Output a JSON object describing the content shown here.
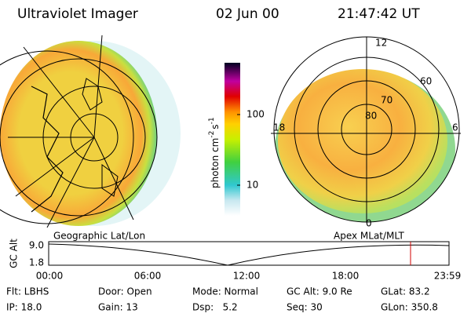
{
  "header": {
    "instrument": "Ultraviolet Imager",
    "date": "02 Jun 00",
    "time": "21:47:42 UT"
  },
  "colorbar": {
    "label": "photon cm",
    "exp1": "-2",
    "unit2": "s",
    "exp2": "-1",
    "ticks": [
      "100",
      "10"
    ]
  },
  "polar_plot": {
    "mlt_labels": [
      "12",
      "6",
      "0",
      "18"
    ],
    "lat_labels": [
      "80",
      "70",
      "60"
    ]
  },
  "altitude_panel": {
    "left_caption": "Geographic Lat/Lon",
    "right_caption": "Apex MLat/MLT",
    "axis_label": "GC Alt",
    "yticks": [
      "9.0",
      "1.8"
    ],
    "xticks": [
      "00:00",
      "06:00",
      "12:00",
      "18:00",
      "23:59"
    ]
  },
  "footer": {
    "rows": [
      [
        "Flt: LBHS",
        "Door: Open",
        "Mode: Normal",
        "GC Alt: 9.0 Re",
        "GLat: 83.2"
      ],
      [
        "IP: 18.0",
        "Gain: 13",
        "Dsp:   5.2",
        "Seq: 30",
        "GLon: 350.8"
      ]
    ]
  }
}
